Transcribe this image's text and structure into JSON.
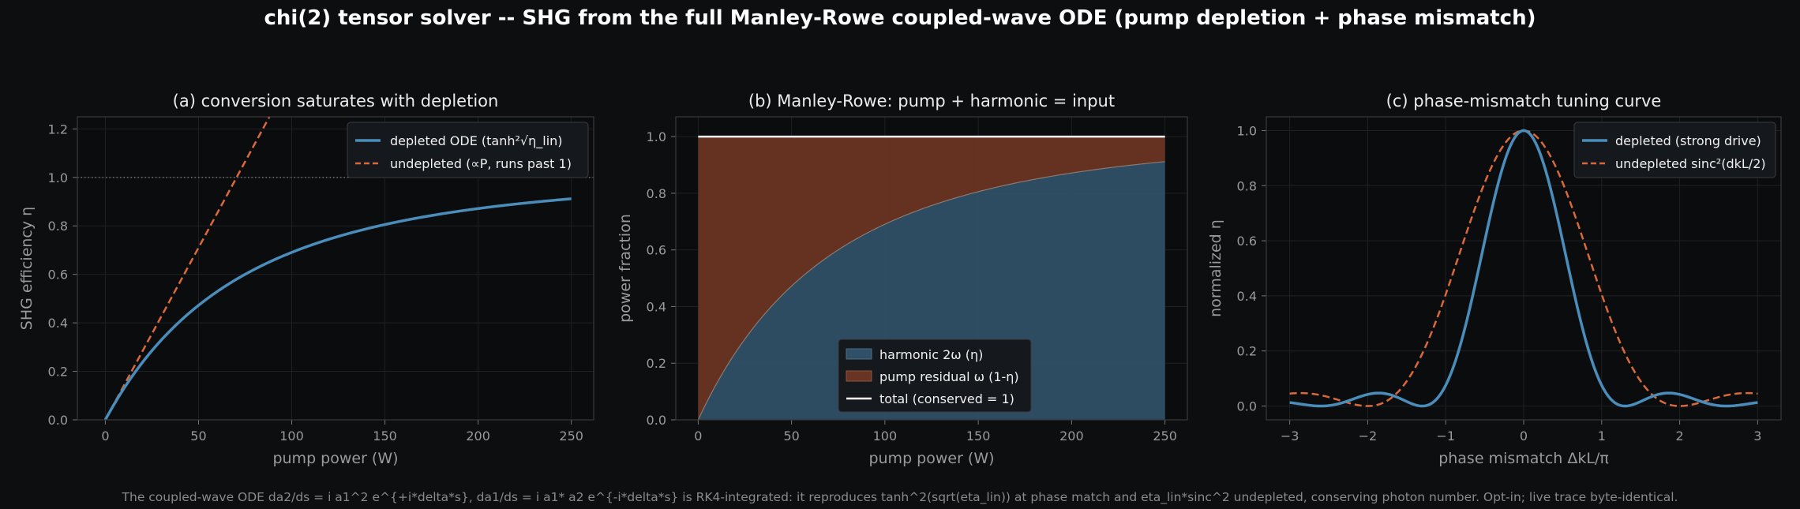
{
  "figure": {
    "suptitle": "chi(2) tensor solver -- SHG from the full Manley-Rowe coupled-wave ODE (pump depletion + phase mismatch)",
    "footer": "The coupled-wave ODE da2/ds = i a1^2 e^{+i*delta*s}, da1/ds = i a1* a2 e^{-i*delta*s} is RK4-integrated: it reproduces tanh^2(sqrt(eta_lin)) at phase match and eta_lin*sinc^2 undepleted, conserving photon number. Opt-in; live trace byte-identical.",
    "colors": {
      "background": "#0d0e10",
      "axes_bg": "#0b0c0e",
      "blue": "#4a8dba",
      "orange": "#d9693a",
      "spine": "#3a3a3a",
      "grid": "#1e2024",
      "legend_bg": "#15181c"
    }
  },
  "chart_data": [
    {
      "id": "a",
      "type": "line",
      "title": "(a) conversion saturates with depletion",
      "xlabel": "pump power (W)",
      "ylabel": "SHG efficiency η",
      "xlim": [
        -15,
        262
      ],
      "ylim": [
        0,
        1.25
      ],
      "xticks": [
        0,
        50,
        100,
        150,
        200,
        250
      ],
      "yticks": [
        0.0,
        0.2,
        0.4,
        0.6,
        0.8,
        1.0,
        1.2
      ],
      "grid": true,
      "legend_placement": "top-right",
      "reference_line": {
        "y": 1.0,
        "style": "dotted"
      },
      "series": [
        {
          "name": "depleted ODE (tanh²√η_lin)",
          "formula": "tanh^2(sqrt(k*P))",
          "k": 0.0142,
          "x_range": [
            0,
            250
          ],
          "color": "#4a8dba",
          "dash": "solid"
        },
        {
          "name": "undepleted (∝P, runs past 1)",
          "formula": "k*P",
          "k": 0.0142,
          "x_range": [
            0,
            250
          ],
          "color": "#d9693a",
          "dash": "dashed"
        }
      ]
    },
    {
      "id": "b",
      "type": "area",
      "title": "(b) Manley-Rowe: pump + harmonic = input",
      "xlabel": "pump power (W)",
      "ylabel": "power fraction",
      "xlim": [
        -12,
        262
      ],
      "ylim": [
        0,
        1.07
      ],
      "xticks": [
        0,
        50,
        100,
        150,
        200,
        250
      ],
      "yticks": [
        0.0,
        0.2,
        0.4,
        0.6,
        0.8,
        1.0
      ],
      "grid": true,
      "legend_placement": "bottom-center",
      "series": [
        {
          "name": "harmonic 2ω (η)",
          "formula": "tanh^2(sqrt(k*P))",
          "k": 0.0142,
          "x_range": [
            0,
            250
          ],
          "color": "#2f5066",
          "kind": "fill"
        },
        {
          "name": "pump residual ω (1-η)",
          "formula": "1 - tanh^2(sqrt(k*P))",
          "x_range": [
            0,
            250
          ],
          "color": "#6a3422",
          "kind": "fill"
        },
        {
          "name": "total (conserved = 1)",
          "formula": "1",
          "x_range": [
            0,
            250
          ],
          "color": "#ffffff",
          "kind": "line"
        }
      ]
    },
    {
      "id": "c",
      "type": "line",
      "title": "(c) phase-mismatch tuning curve",
      "xlabel": "phase mismatch ΔkL/π",
      "ylabel": "normalized η",
      "xlim": [
        -3.3,
        3.3
      ],
      "ylim": [
        -0.05,
        1.05
      ],
      "xticks": [
        -3,
        -2,
        -1,
        0,
        1,
        2,
        3
      ],
      "yticks": [
        0.0,
        0.2,
        0.4,
        0.6,
        0.8,
        1.0
      ],
      "grid": true,
      "legend_placement": "top-right",
      "series": [
        {
          "name": "depleted (strong drive)",
          "formula": "sinc^2(x/1.3)",
          "x_range": [
            -3,
            3
          ],
          "color": "#4a8dba",
          "dash": "solid"
        },
        {
          "name": "undepleted sinc²(dkL/2)",
          "formula": "sinc^2(x/2)",
          "x_range": [
            -3,
            3
          ],
          "color": "#d9693a",
          "dash": "dashed"
        }
      ]
    }
  ]
}
